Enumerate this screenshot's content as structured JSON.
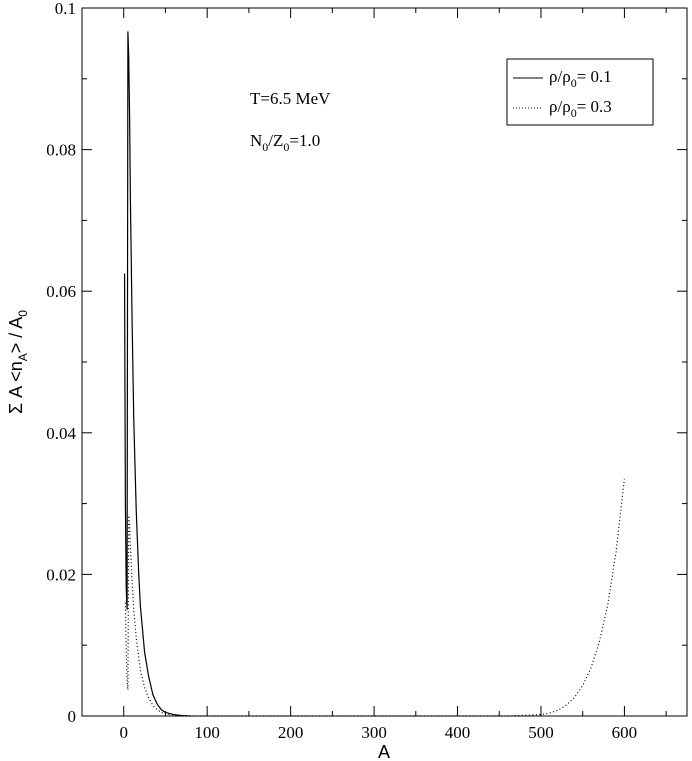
{
  "chart_data": {
    "type": "line",
    "xlabel": "A",
    "ylabel_parts": [
      "Σ A <n",
      "A",
      "> / A",
      "0"
    ],
    "xlim": [
      -50,
      675
    ],
    "ylim": [
      0,
      0.1
    ],
    "x_ticks": [
      0,
      100,
      200,
      300,
      400,
      500,
      600
    ],
    "y_ticks": [
      0,
      0.02,
      0.04,
      0.06,
      0.08,
      0.1
    ],
    "y_tick_labels": [
      "0",
      "0.02",
      "0.04",
      "0.06",
      "0.08",
      "0.1"
    ],
    "annotations": [
      {
        "parts": [
          "T=6.5 MeV"
        ]
      },
      {
        "parts": [
          "N",
          "0",
          "/Z",
          "0",
          "=1.0"
        ]
      }
    ],
    "legend_position": "top-right",
    "series": [
      {
        "name_parts": [
          "ρ/ρ",
          "0",
          "= 0.1"
        ],
        "style": "solid",
        "points": [
          [
            1,
            0.0625
          ],
          [
            1.5,
            0.045
          ],
          [
            2,
            0.03
          ],
          [
            3,
            0.018
          ],
          [
            4,
            0.015
          ],
          [
            5,
            0.0967
          ],
          [
            6,
            0.093
          ],
          [
            7,
            0.085
          ],
          [
            8,
            0.073
          ],
          [
            10,
            0.056
          ],
          [
            12,
            0.042
          ],
          [
            15,
            0.029
          ],
          [
            18,
            0.02
          ],
          [
            20,
            0.0155
          ],
          [
            25,
            0.009
          ],
          [
            30,
            0.0055
          ],
          [
            35,
            0.003
          ],
          [
            40,
            0.0017
          ],
          [
            45,
            0.0009
          ],
          [
            50,
            0.0005
          ],
          [
            60,
            0.0002
          ],
          [
            70,
            5e-05
          ],
          [
            80,
            0
          ]
        ]
      },
      {
        "name_parts": [
          "ρ/ρ",
          "0",
          "= 0.3"
        ],
        "style": "dotted",
        "points": [
          [
            2,
            0.016
          ],
          [
            3,
            0.009
          ],
          [
            4,
            0.005
          ],
          [
            5,
            0.0037
          ],
          [
            6,
            0.0283
          ],
          [
            7,
            0.027
          ],
          [
            8,
            0.024
          ],
          [
            10,
            0.019
          ],
          [
            12,
            0.015
          ],
          [
            15,
            0.011
          ],
          [
            20,
            0.0065
          ],
          [
            25,
            0.004
          ],
          [
            30,
            0.0025
          ],
          [
            35,
            0.0015
          ],
          [
            40,
            0.0009
          ],
          [
            45,
            0.0005
          ],
          [
            50,
            0.0003
          ],
          [
            60,
            0.0001
          ],
          [
            70,
            0
          ],
          [
            460,
            0
          ],
          [
            480,
            0.0001
          ],
          [
            500,
            0.0002
          ],
          [
            510,
            0.0004
          ],
          [
            520,
            0.0008
          ],
          [
            530,
            0.0015
          ],
          [
            540,
            0.0026
          ],
          [
            550,
            0.0043
          ],
          [
            560,
            0.0068
          ],
          [
            570,
            0.0105
          ],
          [
            580,
            0.0157
          ],
          [
            590,
            0.0232
          ],
          [
            600,
            0.0335
          ]
        ]
      }
    ]
  }
}
